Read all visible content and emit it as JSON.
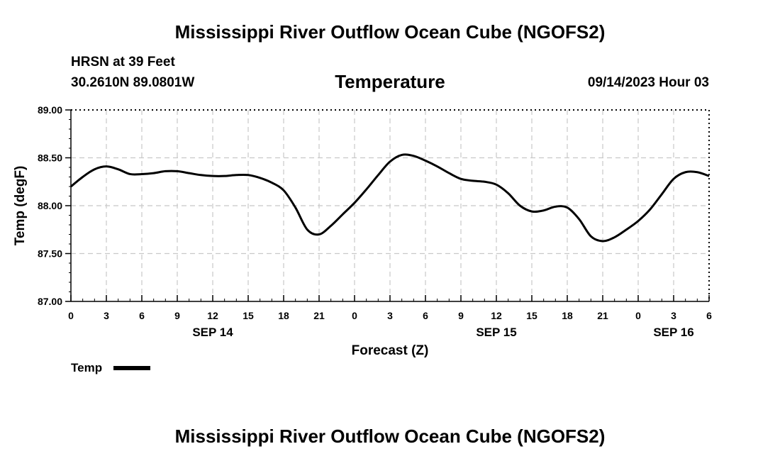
{
  "header": {
    "title": "Mississippi River Outflow Ocean Cube (NGOFS2)",
    "station": "HRSN at 39 Feet",
    "coords": "30.2610N  89.0801W",
    "parameter": "Temperature",
    "datetime": "09/14/2023 Hour 03"
  },
  "footer": {
    "title": "Mississippi River Outflow Ocean Cube (NGOFS2)"
  },
  "legend": {
    "label": "Temp"
  },
  "chart_data": {
    "type": "line",
    "title": "Temperature",
    "xlabel": "Forecast (Z)",
    "ylabel": "Temp (degF)",
    "xlim": [
      0,
      54
    ],
    "ylim": [
      87.0,
      89.0
    ],
    "grid": true,
    "legend_position": "bottom-left",
    "x_ticks": [
      0,
      3,
      6,
      9,
      12,
      15,
      18,
      21,
      24,
      27,
      30,
      33,
      36,
      39,
      42,
      45,
      48,
      51,
      54
    ],
    "x_tick_labels": [
      "0",
      "3",
      "6",
      "9",
      "12",
      "15",
      "18",
      "21",
      "0",
      "3",
      "6",
      "9",
      "12",
      "15",
      "18",
      "21",
      "0",
      "3",
      "6"
    ],
    "y_ticks": [
      87.0,
      87.5,
      88.0,
      88.5,
      89.0
    ],
    "y_tick_labels": [
      "87.00",
      "87.50",
      "88.00",
      "88.50",
      "89.00"
    ],
    "date_labels": [
      {
        "x": 12,
        "label": "SEP 14"
      },
      {
        "x": 36,
        "label": "SEP 15"
      },
      {
        "x": 51,
        "label": "SEP 16"
      }
    ],
    "series": [
      {
        "name": "Temp",
        "color": "#000000",
        "x": [
          0,
          1,
          2,
          3,
          4,
          5,
          6,
          7,
          8,
          9,
          10,
          11,
          12,
          13,
          14,
          15,
          16,
          17,
          18,
          19,
          20,
          21,
          22,
          23,
          24,
          25,
          26,
          27,
          28,
          29,
          30,
          31,
          32,
          33,
          34,
          35,
          36,
          37,
          38,
          39,
          40,
          41,
          42,
          43,
          44,
          45,
          46,
          47,
          48,
          49,
          50,
          51,
          52,
          53,
          54
        ],
        "values": [
          88.2,
          88.3,
          88.38,
          88.41,
          88.38,
          88.33,
          88.33,
          88.34,
          88.36,
          88.36,
          88.34,
          88.32,
          88.31,
          88.31,
          88.32,
          88.32,
          88.29,
          88.24,
          88.16,
          87.98,
          87.75,
          87.7,
          87.79,
          87.91,
          88.03,
          88.17,
          88.32,
          88.46,
          88.53,
          88.52,
          88.47,
          88.41,
          88.34,
          88.28,
          88.26,
          88.25,
          88.22,
          88.13,
          88.0,
          87.94,
          87.95,
          87.99,
          87.98,
          87.86,
          87.68,
          87.63,
          87.67,
          87.75,
          87.84,
          87.96,
          88.12,
          88.28,
          88.35,
          88.35,
          88.31
        ]
      }
    ]
  }
}
